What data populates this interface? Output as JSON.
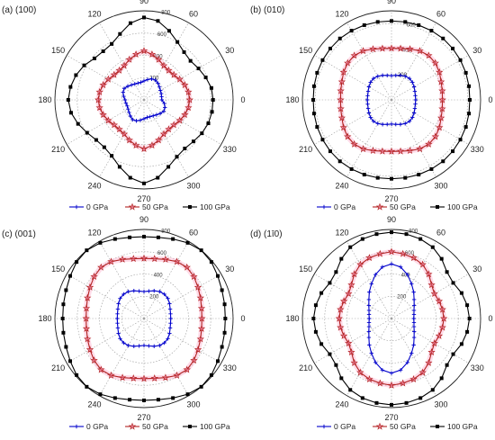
{
  "chart_data": [
    {
      "type": "polar-line",
      "panel_label": "(a) (100)",
      "theta_ticks": [
        "0",
        "30",
        "60",
        "90",
        "120",
        "150",
        "180",
        "210",
        "240",
        "270",
        "300",
        "330"
      ],
      "r_ticks": [
        "200",
        "400",
        "600",
        "800"
      ],
      "rlim": [
        0,
        800
      ],
      "theta_step_deg": 10,
      "legend": [
        "0 GPa",
        "50 GPa",
        "100 GPa"
      ],
      "legend_placement": "bottom",
      "series": [
        {
          "name": "0 GPa",
          "color": "#0000cc",
          "marker": "plus",
          "r": [
            160,
            160,
            165,
            170,
            180,
            195,
            205,
            200,
            185,
            170,
            160,
            160,
            165,
            175,
            190,
            205,
            200,
            185,
            170,
            165,
            160,
            165,
            175,
            190,
            205,
            200,
            185,
            170,
            160,
            160,
            165,
            175,
            190,
            205,
            200,
            185
          ]
        },
        {
          "name": "50 GPa",
          "color": "#b22222",
          "marker": "star",
          "r": [
            410,
            405,
            390,
            370,
            350,
            345,
            355,
            385,
            415,
            440,
            415,
            385,
            355,
            345,
            350,
            370,
            390,
            405,
            410,
            405,
            390,
            370,
            350,
            345,
            355,
            385,
            415,
            440,
            415,
            385,
            355,
            345,
            350,
            370,
            390,
            405
          ]
        },
        {
          "name": "100 GPa",
          "color": "#000000",
          "marker": "square",
          "r": [
            620,
            615,
            590,
            565,
            545,
            560,
            600,
            660,
            720,
            740,
            700,
            630,
            580,
            570,
            580,
            620,
            650,
            670,
            680,
            665,
            630,
            590,
            560,
            555,
            580,
            640,
            710,
            750,
            710,
            640,
            590,
            570,
            580,
            600,
            615,
            620
          ]
        }
      ]
    },
    {
      "type": "polar-line",
      "panel_label": "(b) (010)",
      "theta_ticks": [
        "0",
        "30",
        "60",
        "90",
        "120",
        "150",
        "180",
        "210",
        "240",
        "270",
        "300",
        "330"
      ],
      "r_ticks": [
        "200",
        "400",
        "600"
      ],
      "rlim": [
        0,
        700
      ],
      "theta_step_deg": 10,
      "legend": [
        "0 GPa",
        "50 GPa",
        "100 GPa"
      ],
      "legend_placement": "bottom",
      "series": [
        {
          "name": "0 GPa",
          "color": "#0000cc",
          "marker": "plus",
          "r": [
            190,
            190,
            195,
            205,
            215,
            220,
            215,
            205,
            195,
            190,
            195,
            205,
            215,
            220,
            215,
            205,
            195,
            190,
            190,
            190,
            195,
            205,
            215,
            220,
            215,
            205,
            195,
            190,
            195,
            205,
            215,
            220,
            215,
            205,
            195,
            190
          ]
        },
        {
          "name": "50 GPa",
          "color": "#b22222",
          "marker": "star",
          "r": [
            400,
            405,
            415,
            435,
            450,
            455,
            445,
            425,
            410,
            405,
            410,
            425,
            445,
            455,
            450,
            435,
            415,
            405,
            400,
            405,
            415,
            435,
            450,
            455,
            445,
            425,
            410,
            405,
            410,
            425,
            445,
            455,
            450,
            435,
            415,
            405
          ]
        },
        {
          "name": "100 GPa",
          "color": "#000000",
          "marker": "square",
          "r": [
            615,
            618,
            622,
            625,
            628,
            630,
            628,
            625,
            622,
            620,
            622,
            625,
            628,
            630,
            628,
            625,
            622,
            618,
            615,
            618,
            622,
            625,
            628,
            630,
            628,
            625,
            622,
            620,
            622,
            625,
            628,
            630,
            628,
            625,
            622,
            618
          ]
        }
      ]
    },
    {
      "type": "polar-line",
      "panel_label": "(c) (001)",
      "theta_ticks": [
        "0",
        "30",
        "60",
        "90",
        "120",
        "150",
        "180",
        "210",
        "240",
        "270",
        "300",
        "330"
      ],
      "r_ticks": [
        "200",
        "400",
        "600",
        "800"
      ],
      "rlim": [
        0,
        800
      ],
      "theta_step_deg": 10,
      "legend": [
        "0 GPa",
        "50 GPa",
        "100 GPa"
      ],
      "legend_placement": "bottom",
      "series": [
        {
          "name": "0 GPa",
          "color": "#0000cc",
          "marker": "plus",
          "r": [
            240,
            242,
            250,
            265,
            280,
            285,
            280,
            265,
            250,
            242,
            250,
            265,
            280,
            285,
            280,
            265,
            250,
            242,
            240,
            242,
            250,
            265,
            280,
            285,
            280,
            265,
            250,
            242,
            250,
            265,
            280,
            285,
            280,
            265,
            250,
            242
          ]
        },
        {
          "name": "50 GPa",
          "color": "#b22222",
          "marker": "star",
          "r": [
            520,
            525,
            540,
            560,
            585,
            600,
            590,
            565,
            545,
            540,
            545,
            565,
            590,
            600,
            585,
            560,
            540,
            525,
            520,
            525,
            540,
            560,
            585,
            600,
            590,
            565,
            545,
            540,
            545,
            565,
            590,
            600,
            585,
            560,
            540,
            525
          ]
        },
        {
          "name": "100 GPa",
          "color": "#000000",
          "marker": "square",
          "r": [
            730,
            735,
            745,
            765,
            790,
            800,
            785,
            760,
            740,
            735,
            740,
            760,
            785,
            800,
            790,
            765,
            745,
            735,
            730,
            735,
            745,
            765,
            790,
            800,
            785,
            760,
            740,
            735,
            740,
            760,
            785,
            800,
            790,
            765,
            745,
            735
          ]
        }
      ]
    },
    {
      "type": "polar-line",
      "panel_label": "(d) (1ī0)",
      "theta_ticks": [
        "0",
        "30",
        "60",
        "90",
        "120",
        "150",
        "180",
        "210",
        "240",
        "270",
        "300",
        "330"
      ],
      "r_ticks": [
        "200",
        "400",
        "600",
        "800"
      ],
      "rlim": [
        0,
        800
      ],
      "theta_step_deg": 10,
      "legend": [
        "0 GPa",
        "50 GPa",
        "100 GPa"
      ],
      "legend_placement": "bottom",
      "series": [
        {
          "name": "0 GPa",
          "color": "#0000cc",
          "marker": "plus",
          "r": [
            200,
            205,
            215,
            235,
            265,
            310,
            360,
            420,
            470,
            490,
            470,
            420,
            360,
            310,
            265,
            235,
            215,
            205,
            200,
            205,
            215,
            235,
            265,
            310,
            360,
            420,
            470,
            490,
            470,
            420,
            360,
            310,
            265,
            235,
            215,
            205
          ]
        },
        {
          "name": "50 GPa",
          "color": "#b22222",
          "marker": "star",
          "r": [
            470,
            465,
            455,
            445,
            470,
            520,
            560,
            580,
            590,
            600,
            590,
            580,
            560,
            520,
            470,
            445,
            455,
            465,
            470,
            465,
            455,
            445,
            470,
            520,
            560,
            580,
            590,
            600,
            590,
            580,
            560,
            520,
            470,
            445,
            455,
            465
          ]
        },
        {
          "name": "100 GPa",
          "color": "#000000",
          "marker": "square",
          "r": [
            700,
            690,
            670,
            640,
            650,
            700,
            740,
            760,
            770,
            775,
            770,
            760,
            740,
            700,
            650,
            640,
            670,
            690,
            700,
            690,
            670,
            640,
            650,
            700,
            740,
            760,
            770,
            775,
            770,
            760,
            740,
            700,
            650,
            640,
            670,
            690
          ]
        }
      ]
    }
  ]
}
